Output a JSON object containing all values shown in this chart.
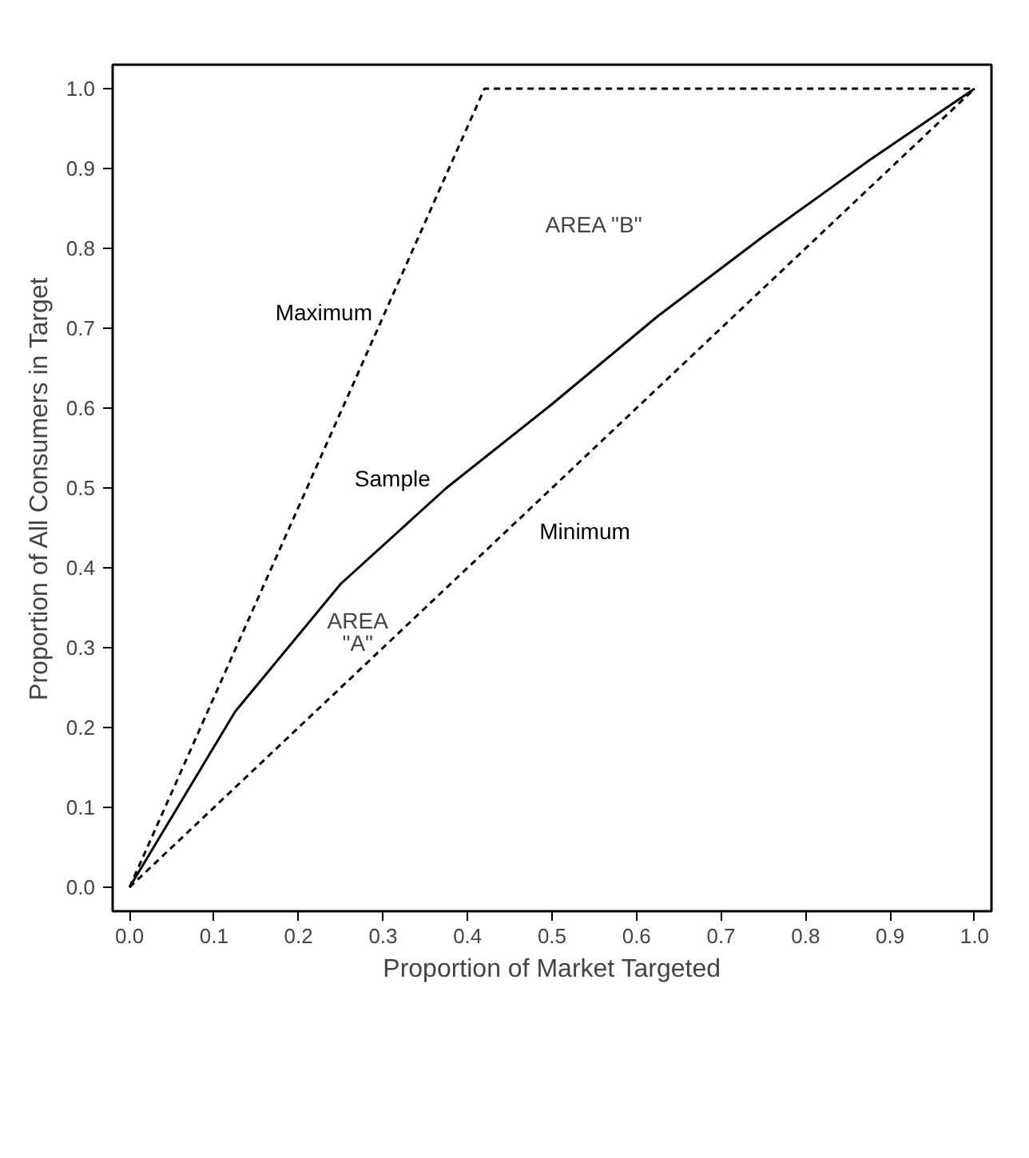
{
  "chart_data": {
    "type": "line",
    "xlabel": "Proportion of Market Targeted",
    "ylabel": "Proportion of All Consumers in Target",
    "xlim": [
      -0.02,
      1.02
    ],
    "ylim": [
      -0.03,
      1.03
    ],
    "xticks": [
      {
        "value": 0,
        "label": "0.0"
      },
      0.1,
      0.2,
      0.3,
      0.4,
      0.5,
      0.6,
      0.7,
      0.8,
      0.9,
      {
        "value": 1,
        "label": "1.0"
      }
    ],
    "yticks": [
      {
        "value": 0,
        "label": "0.0"
      },
      0.1,
      0.2,
      0.3,
      0.4,
      0.5,
      0.6,
      0.7,
      0.8,
      0.9,
      {
        "value": 1,
        "label": "1.0"
      }
    ],
    "grid": false,
    "marker": "none",
    "series": [
      {
        "name": "Maximum",
        "color": "#000000",
        "line_style": "dashed",
        "x": [
          0,
          0.42,
          1
        ],
        "values": [
          0,
          1,
          1
        ]
      },
      {
        "name": "Sample",
        "color": "#000000",
        "line_style": "solid",
        "x": [
          0,
          0.125,
          0.25,
          0.375,
          0.5,
          0.625,
          0.75,
          0.875,
          1
        ],
        "values": [
          0,
          0.22,
          0.38,
          0.5,
          0.605,
          0.715,
          0.815,
          0.91,
          1
        ]
      },
      {
        "name": "Minimum",
        "color": "#000000",
        "line_style": "dashed",
        "x": [
          0,
          1
        ],
        "values": [
          0,
          1
        ]
      }
    ],
    "annotations": [
      "AREA \"B\"",
      "AREA\n\"A\""
    ]
  }
}
